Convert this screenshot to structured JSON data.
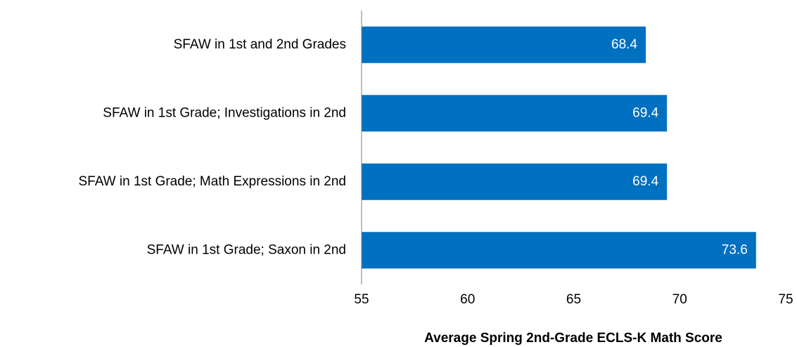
{
  "chart_data": {
    "type": "barh",
    "x_label": "Average Spring 2nd-Grade ECLS-K Math Score",
    "categories": [
      "SFAW in 1st and 2nd Grades",
      "SFAW in 1st Grade; Investigations in 2nd",
      "SFAW in 1st Grade; Math Expressions in 2nd",
      "SFAW in 1st Grade; Saxon in 2nd"
    ],
    "values": [
      68.4,
      69.4,
      69.4,
      73.6
    ],
    "color": "#0070c0",
    "xlim": [
      55,
      75
    ],
    "xticks": [
      55,
      60,
      65,
      70,
      75
    ],
    "grid": false
  }
}
